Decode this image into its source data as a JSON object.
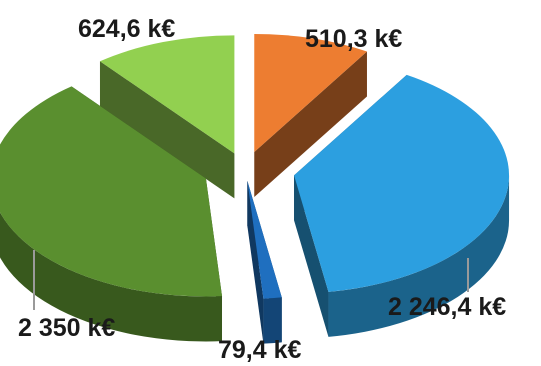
{
  "chart_data": {
    "type": "pie",
    "style": "3d-exploded",
    "slices": [
      {
        "label": "510,3 k€",
        "value": 510.3,
        "color": "#ed7d31"
      },
      {
        "label": "2 246,4 k€",
        "value": 2246.4,
        "color": "#2c9fe0"
      },
      {
        "label": "79,4 k€",
        "value": 79.4,
        "color": "#1f6fbf"
      },
      {
        "label": "2 350 k€",
        "value": 2350,
        "color": "#5a8f2f"
      },
      {
        "label": "624,6 k€",
        "value": 624.6,
        "color": "#92d050"
      }
    ],
    "legend": "none"
  }
}
